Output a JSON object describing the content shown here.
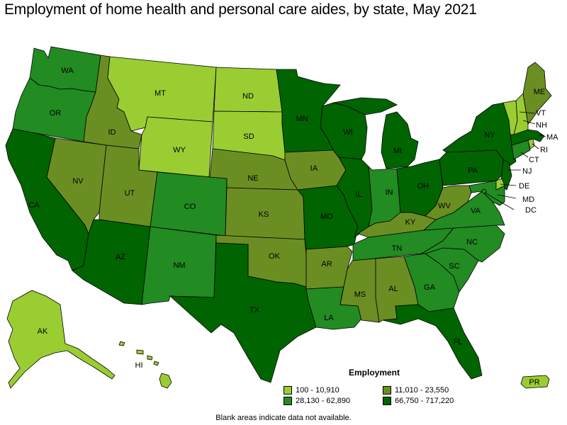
{
  "title": "Employment of home health and personal care aides, by state, May 2021",
  "legend": {
    "title": "Employment",
    "items": [
      {
        "range": "100 - 10,910",
        "color": "#9acd32"
      },
      {
        "range": "11,010 - 23,550",
        "color": "#6b8e23"
      },
      {
        "range": "28,130 - 62,890",
        "color": "#228b22"
      },
      {
        "range": "66,750 - 717,220",
        "color": "#006400"
      }
    ]
  },
  "footnote": "Blank areas indicate data not available.",
  "colors": {
    "tier1": "#9acd32",
    "tier2": "#6b8e23",
    "tier3": "#228b22",
    "tier4": "#006400"
  },
  "states": {
    "WA": {
      "label": "WA",
      "tier": 3
    },
    "OR": {
      "label": "OR",
      "tier": 3
    },
    "CA": {
      "label": "CA",
      "tier": 4
    },
    "ID": {
      "label": "ID",
      "tier": 2
    },
    "NV": {
      "label": "NV",
      "tier": 2
    },
    "MT": {
      "label": "MT",
      "tier": 1
    },
    "WY": {
      "label": "WY",
      "tier": 1
    },
    "UT": {
      "label": "UT",
      "tier": 2
    },
    "AZ": {
      "label": "AZ",
      "tier": 4
    },
    "CO": {
      "label": "CO",
      "tier": 3
    },
    "NM": {
      "label": "NM",
      "tier": 3
    },
    "ND": {
      "label": "ND",
      "tier": 1
    },
    "SD": {
      "label": "SD",
      "tier": 1
    },
    "NE": {
      "label": "NE",
      "tier": 2
    },
    "KS": {
      "label": "KS",
      "tier": 2
    },
    "OK": {
      "label": "OK",
      "tier": 2
    },
    "TX": {
      "label": "TX",
      "tier": 4
    },
    "MN": {
      "label": "MN",
      "tier": 4
    },
    "IA": {
      "label": "IA",
      "tier": 2
    },
    "MO": {
      "label": "MO",
      "tier": 4
    },
    "AR": {
      "label": "AR",
      "tier": 2
    },
    "LA": {
      "label": "LA",
      "tier": 3
    },
    "WI": {
      "label": "WI",
      "tier": 4
    },
    "IL": {
      "label": "IL",
      "tier": 4
    },
    "MI": {
      "label": "MI",
      "tier": 4
    },
    "IN": {
      "label": "IN",
      "tier": 3
    },
    "OH": {
      "label": "OH",
      "tier": 4
    },
    "KY": {
      "label": "KY",
      "tier": 2
    },
    "TN": {
      "label": "TN",
      "tier": 3
    },
    "MS": {
      "label": "MS",
      "tier": 2
    },
    "AL": {
      "label": "AL",
      "tier": 2
    },
    "GA": {
      "label": "GA",
      "tier": 3
    },
    "FL": {
      "label": "FL",
      "tier": 4
    },
    "SC": {
      "label": "SC",
      "tier": 3
    },
    "NC": {
      "label": "NC",
      "tier": 3
    },
    "VA": {
      "label": "VA",
      "tier": 3
    },
    "WV": {
      "label": "WV",
      "tier": 2
    },
    "PA": {
      "label": "PA",
      "tier": 4
    },
    "NY": {
      "label": "NY",
      "tier": 4
    },
    "NJ": {
      "label": "NJ",
      "tier": 4
    },
    "DE": {
      "label": "DE",
      "tier": 1
    },
    "MD": {
      "label": "MD",
      "tier": 3
    },
    "DC": {
      "label": "DC",
      "tier": 3
    },
    "CT": {
      "label": "CT",
      "tier": 3
    },
    "RI": {
      "label": "RI",
      "tier": 1
    },
    "MA": {
      "label": "MA",
      "tier": 4
    },
    "VT": {
      "label": "VT",
      "tier": 1
    },
    "NH": {
      "label": "NH",
      "tier": 1
    },
    "ME": {
      "label": "ME",
      "tier": 2
    },
    "AK": {
      "label": "AK",
      "tier": 1
    },
    "HI": {
      "label": "HI",
      "tier": 1
    },
    "PR": {
      "label": "PR",
      "tier": 1
    }
  }
}
